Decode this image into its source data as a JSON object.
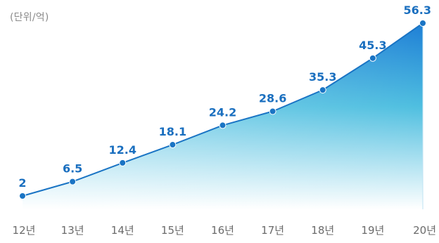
{
  "unit": "(단위/억)",
  "colors": {
    "line": "#1a74c4",
    "area_top": "#1e7fd6",
    "area_mid": "#4fbfe0",
    "area_bottom": "#ffffff",
    "value_text": "#1a6fbf",
    "tick_text": "#6b6b6b"
  },
  "chart_data": {
    "type": "area",
    "categories": [
      "12년",
      "13년",
      "14년",
      "15년",
      "16년",
      "17년",
      "18년",
      "19년",
      "20년"
    ],
    "values": [
      2,
      6.5,
      12.4,
      18.1,
      24.2,
      28.6,
      35.3,
      45.3,
      56.3
    ],
    "value_labels": [
      "2",
      "6.5",
      "12.4",
      "18.1",
      "24.2",
      "28.6",
      "35.3",
      "45.3",
      "56.3"
    ],
    "xlabel": "",
    "ylabel": "",
    "ylim": [
      0,
      56.3
    ],
    "grid": false,
    "legend": "none"
  }
}
